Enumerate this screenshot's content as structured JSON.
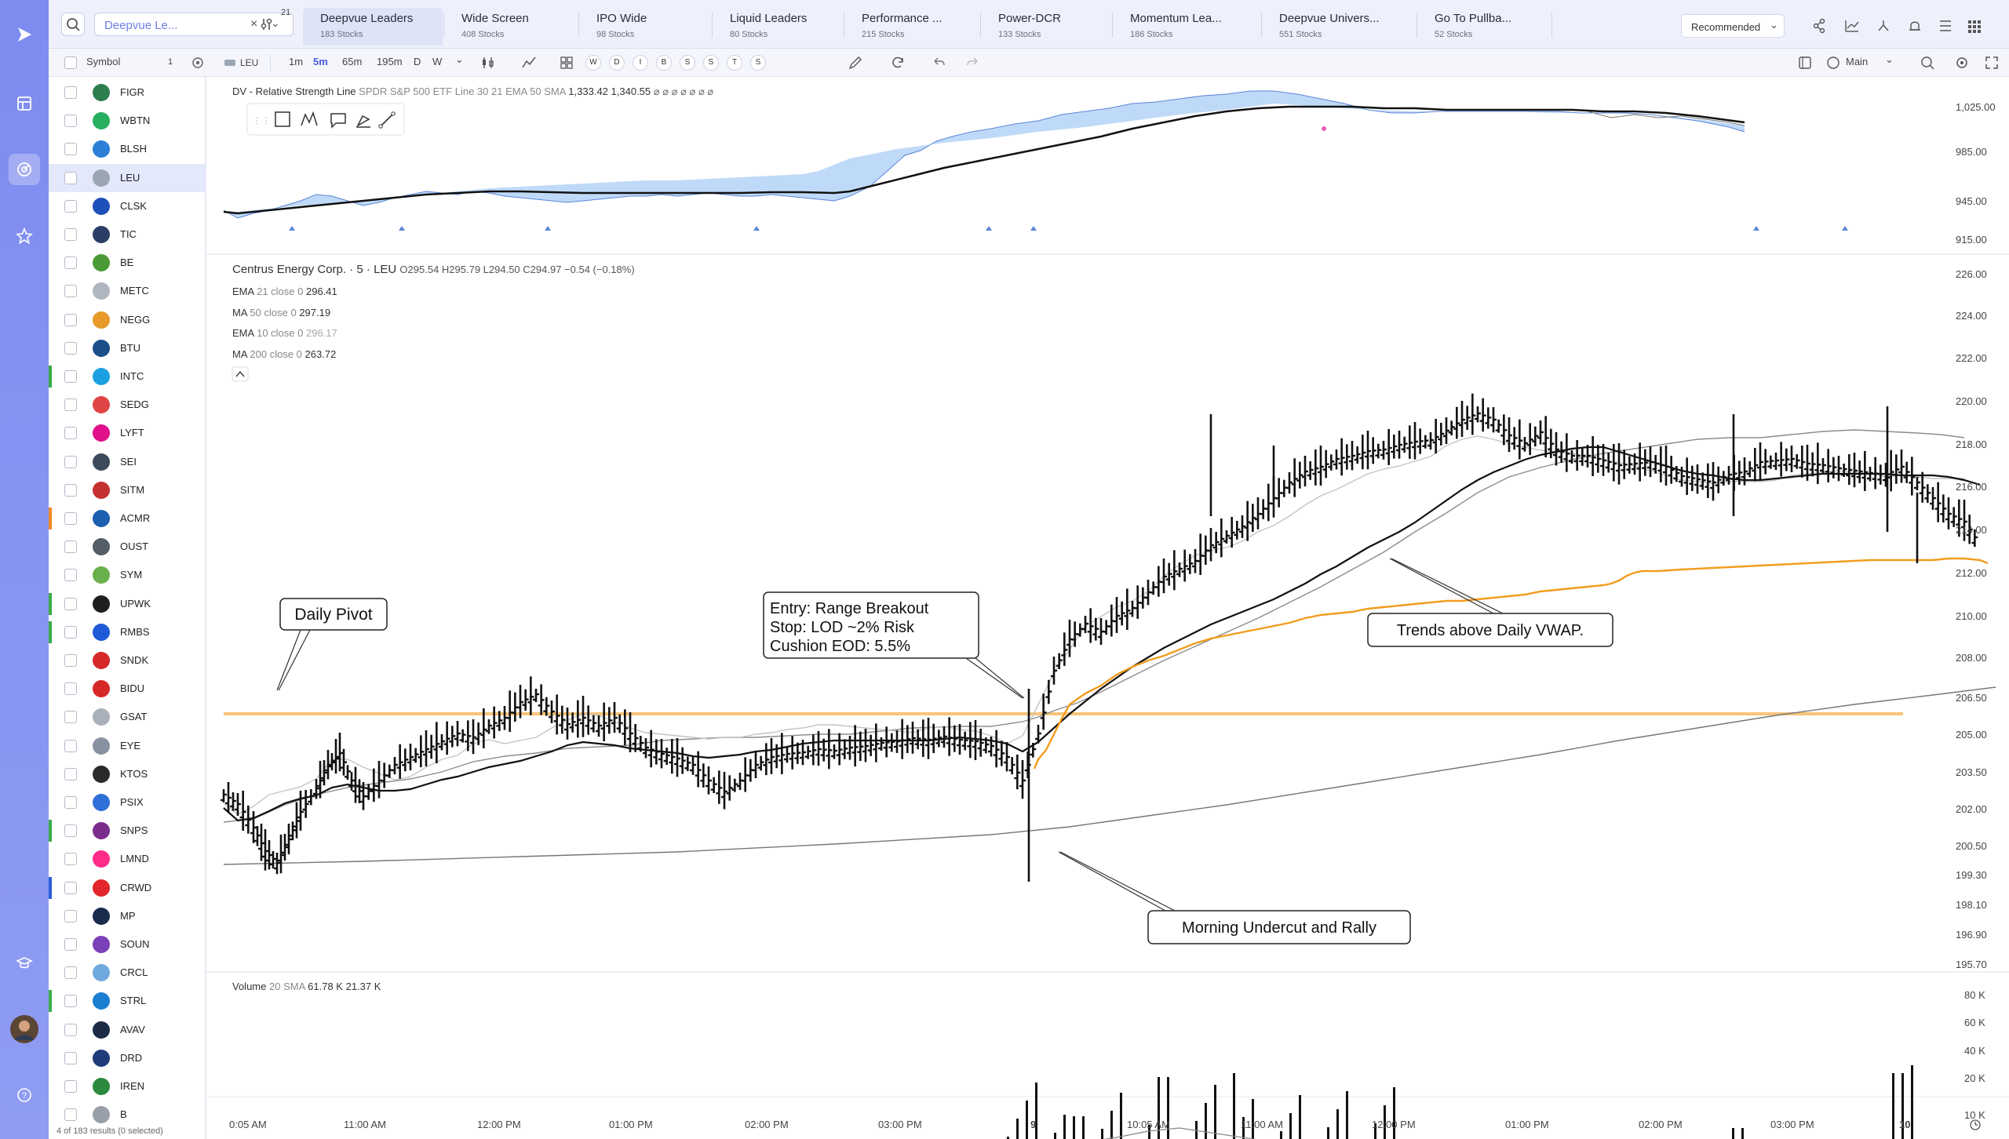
{
  "screens": {
    "search_value": "Deepvue Le...",
    "filter_badge": "21",
    "tabs": [
      {
        "name": "Deepvue Leaders",
        "count": "183 Stocks"
      },
      {
        "name": "Wide Screen",
        "count": "408 Stocks"
      },
      {
        "name": "IPO Wide",
        "count": "98 Stocks"
      },
      {
        "name": "Liquid Leaders",
        "count": "80 Stocks"
      },
      {
        "name": "Performance ...",
        "count": "215 Stocks"
      },
      {
        "name": "Power-DCR",
        "count": "133 Stocks"
      },
      {
        "name": "Momentum Lea...",
        "count": "186 Stocks"
      },
      {
        "name": "Deepvue Univers...",
        "count": "551 Stocks"
      },
      {
        "name": "Go To Pullba...",
        "count": "52 Stocks"
      }
    ],
    "sort_label": "Recommended"
  },
  "toolbar": {
    "symbol_header": "Symbol",
    "symbol_count": "1",
    "ticker": "LEU",
    "intervals": [
      "1m",
      "5m",
      "65m",
      "195m",
      "D",
      "W"
    ],
    "active_interval": "5m",
    "toggles": [
      "W",
      "D",
      "I",
      "B",
      "S",
      "S",
      "T",
      "S"
    ],
    "layout_label": "Main"
  },
  "watchlist": {
    "items": [
      {
        "symbol": "FIGR",
        "logo": "#2e7d4f",
        "mark": ""
      },
      {
        "symbol": "WBTN",
        "logo": "#27ae60",
        "mark": ""
      },
      {
        "symbol": "BLSH",
        "logo": "#2b7fd6",
        "mark": ""
      },
      {
        "symbol": "LEU",
        "logo": "#9aa7b3",
        "mark": ""
      },
      {
        "symbol": "CLSK",
        "logo": "#1f4fb8",
        "mark": ""
      },
      {
        "symbol": "TIC",
        "logo": "#2c3e66",
        "mark": ""
      },
      {
        "symbol": "BE",
        "logo": "#4a9b35",
        "mark": ""
      },
      {
        "symbol": "METC",
        "logo": "#b0b6c0",
        "mark": ""
      },
      {
        "symbol": "NEGG",
        "logo": "#e59a2a",
        "mark": ""
      },
      {
        "symbol": "BTU",
        "logo": "#1c4e8a",
        "mark": ""
      },
      {
        "symbol": "INTC",
        "logo": "#1aa0e0",
        "mark": "#3aaa4a"
      },
      {
        "symbol": "SEDG",
        "logo": "#e04545",
        "mark": ""
      },
      {
        "symbol": "LYFT",
        "logo": "#e0118a",
        "mark": ""
      },
      {
        "symbol": "SEI",
        "logo": "#3c4a5c",
        "mark": ""
      },
      {
        "symbol": "SITM",
        "logo": "#c53030",
        "mark": ""
      },
      {
        "symbol": "ACMR",
        "logo": "#1d5fb0",
        "mark": "#f08a2b"
      },
      {
        "symbol": "OUST",
        "logo": "#555d66",
        "mark": ""
      },
      {
        "symbol": "SYM",
        "logo": "#6ab04c",
        "mark": ""
      },
      {
        "symbol": "UPWK",
        "logo": "#1e1e1e",
        "mark": "#3aaa4a"
      },
      {
        "symbol": "RMBS",
        "logo": "#1f5bd6",
        "mark": "#3aaa4a"
      },
      {
        "symbol": "SNDK",
        "logo": "#d62828",
        "mark": ""
      },
      {
        "symbol": "BIDU",
        "logo": "#d62828",
        "mark": ""
      },
      {
        "symbol": "GSAT",
        "logo": "#a9b0bb",
        "mark": ""
      },
      {
        "symbol": "EYE",
        "logo": "#8892a0",
        "mark": ""
      },
      {
        "symbol": "KTOS",
        "logo": "#2a2a2a",
        "mark": ""
      },
      {
        "symbol": "PSIX",
        "logo": "#2f6fd8",
        "mark": ""
      },
      {
        "symbol": "SNPS",
        "logo": "#7b2d8e",
        "mark": "#3aaa4a"
      },
      {
        "symbol": "LMND",
        "logo": "#ff2d87",
        "mark": ""
      },
      {
        "symbol": "CRWD",
        "logo": "#e3262b",
        "mark": "#2b5fd6"
      },
      {
        "symbol": "MP",
        "logo": "#1a2b4c",
        "mark": ""
      },
      {
        "symbol": "SOUN",
        "logo": "#7b3fb8",
        "mark": ""
      },
      {
        "symbol": "CRCL",
        "logo": "#6fa8dc",
        "mark": ""
      },
      {
        "symbol": "STRL",
        "logo": "#1a7fd0",
        "mark": "#3aaa4a"
      },
      {
        "symbol": "AVAV",
        "logo": "#1c2a44",
        "mark": ""
      },
      {
        "symbol": "DRD",
        "logo": "#1f3d7a",
        "mark": ""
      },
      {
        "symbol": "IREN",
        "logo": "#2b8a3e",
        "mark": ""
      },
      {
        "symbol": "B",
        "logo": "#999fa8",
        "mark": ""
      }
    ],
    "footer": "4 of 183 results (0 selected)"
  },
  "rs_pane": {
    "title": "DV - Relative Strength Line",
    "params": "SPDR S&P 500 ETF Line 30 21 EMA 50 SMA",
    "v1": "1,333.42",
    "v2": "1,340.55",
    "flags": "⌀ ⌀ ⌀ ⌀ ⌀ ⌀ ⌀",
    "axis": [
      "1,025.00",
      "985.00",
      "945.00",
      "915.00"
    ]
  },
  "price_pane": {
    "name": "Centrus Energy Corp. · 5 · LEU",
    "ohlc": "O295.54  H295.79  L294.50  C294.97  −0.54 (−0.18%)",
    "studies": [
      {
        "label": "EMA",
        "params": "21 close 0",
        "value": "296.41"
      },
      {
        "label": "MA",
        "params": "50 close 0",
        "value": "297.19"
      },
      {
        "label": "EMA",
        "params": "10 close 0",
        "value": "296.17"
      },
      {
        "label": "MA",
        "params": "200 close 0",
        "value": "263.72"
      }
    ],
    "axis": [
      "226.00",
      "224.00",
      "222.00",
      "220.00",
      "218.00",
      "216.00",
      "214.00",
      "212.00",
      "210.00",
      "208.00",
      "206.50",
      "205.00",
      "203.50",
      "202.00",
      "200.50",
      "199.30",
      "198.10",
      "196.90",
      "195.70"
    ],
    "annotations": {
      "pivot": "Daily Pivot",
      "entry_1": "Entry: Range Breakout",
      "entry_2": "Stop: LOD ~2% Risk",
      "entry_3": "Cushion EOD: 5.5%",
      "vwap": "Trends above Daily VWAP.",
      "undercut": "Morning Undercut and Rally"
    }
  },
  "volume_pane": {
    "title": "Volume",
    "params": "20 SMA",
    "v1": "61.78 K",
    "v2": "21.37 K",
    "axis": [
      "80 K",
      "60 K",
      "40 K",
      "20 K",
      "10 K"
    ]
  },
  "time_axis": [
    "0:05 AM",
    "11:00 AM",
    "12:00 PM",
    "01:00 PM",
    "02:00 PM",
    "03:00 PM",
    "9",
    "10:05 AM",
    "11:00 AM",
    "12:00 PM",
    "01:00 PM",
    "02:00 PM",
    "03:00 PM",
    "10"
  ],
  "colors": {
    "accent": "#7e8cf0",
    "vwap": "#f39c1e",
    "pivot": "#f7c47a",
    "rs_fill": "#a9cdf5"
  }
}
